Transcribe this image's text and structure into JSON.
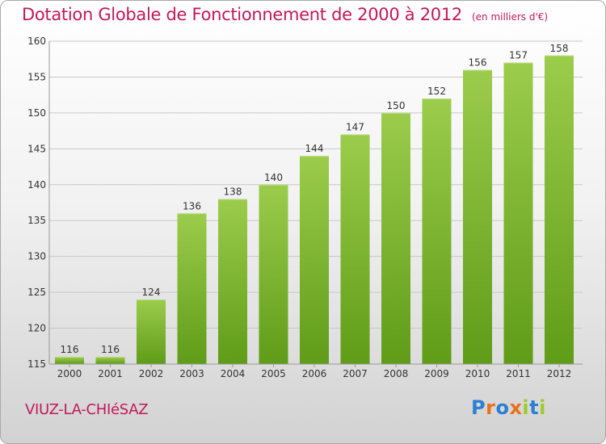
{
  "header": {
    "title": "Dotation Globale de Fonctionnement de 2000 à 2012",
    "unit": "(en milliers d'€)"
  },
  "footer": {
    "commune": "VIUZ-LA-CHIéSAZ",
    "logo": "Proxiti",
    "logo_colors": [
      "#2d7fd3",
      "#e8711a",
      "#2d7fd3",
      "#e8711a",
      "#9ccc2b",
      "#2d7fd3",
      "#9ccc2b"
    ]
  },
  "colors": {
    "title": "#c2185b",
    "bar_top": "#9ccc4c",
    "bar_bottom": "#5f9c18",
    "grid": "#c8c8c8",
    "axis_text": "#333333"
  },
  "chart_data": {
    "type": "bar",
    "categories": [
      "2000",
      "2001",
      "2002",
      "2003",
      "2004",
      "2005",
      "2006",
      "2007",
      "2008",
      "2009",
      "2010",
      "2011",
      "2012"
    ],
    "values": [
      116,
      116,
      124,
      136,
      138,
      140,
      144,
      147,
      150,
      152,
      156,
      157,
      158
    ],
    "data_labels": [
      "116",
      "116",
      "124",
      "136",
      "138",
      "140",
      "144",
      "147",
      "150",
      "152",
      "156",
      "157",
      "158"
    ],
    "ylim": [
      115,
      160
    ],
    "yticks": [
      115,
      120,
      125,
      130,
      135,
      140,
      145,
      150,
      155,
      160
    ],
    "ytick_labels": [
      "115",
      "120",
      "125",
      "130",
      "135",
      "140",
      "145",
      "150",
      "155",
      "160"
    ],
    "grid": true
  }
}
